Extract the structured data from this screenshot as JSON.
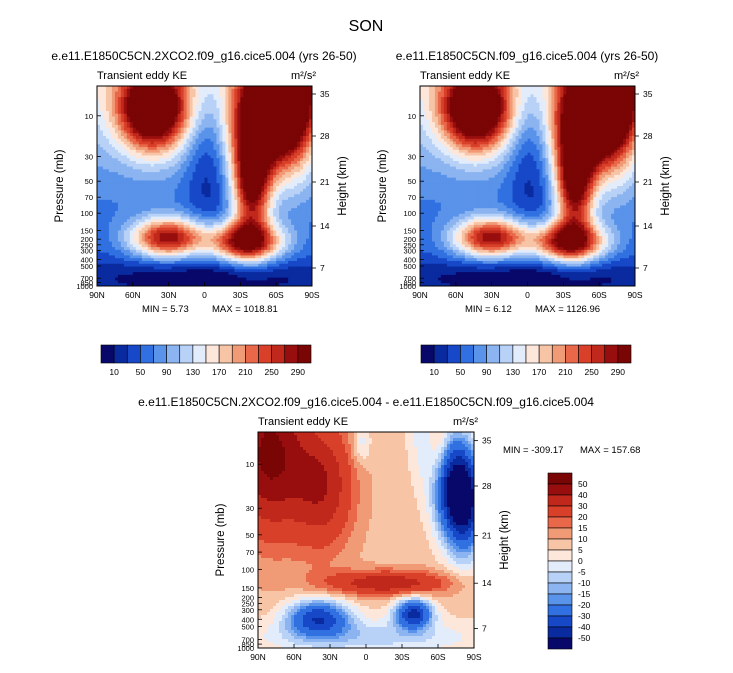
{
  "figure_title": "SON",
  "colors": {
    "seq": [
      "#08086b",
      "#0a2aa0",
      "#1648c8",
      "#3070e0",
      "#5a93ea",
      "#8bb4f0",
      "#b8d1f6",
      "#e2ecfb",
      "#fde6da",
      "#f7c4a6",
      "#f19a76",
      "#e9684a",
      "#d8402a",
      "#c0281b",
      "#980e0e",
      "#7a0505"
    ],
    "div": [
      "#08086b",
      "#0a2aa0",
      "#1648c8",
      "#3070e0",
      "#5a93ea",
      "#8bb4f0",
      "#b8d1f6",
      "#e2ecfb",
      "#fde6da",
      "#f7c4a6",
      "#f19a76",
      "#e9684a",
      "#d8402a",
      "#c0281b",
      "#980e0e",
      "#7a0505"
    ]
  },
  "chart_data": [
    {
      "type": "heatmap",
      "title": "e.e11.E1850C5CN.2XCO2.f09_g16.cice5.004 (yrs 26-50)",
      "left_label": "Transient eddy KE",
      "right_label": "m²/s²",
      "ylabel": "Pressure (mb)",
      "ylabel_right": "Height (km)",
      "x_ticks": [
        "90N",
        "60N",
        "30N",
        "0",
        "30S",
        "60S",
        "90S"
      ],
      "y_ticks": [
        "10",
        "30",
        "50",
        "70",
        "100",
        "150",
        "200",
        "250",
        "300",
        "400",
        "500",
        "700",
        "850",
        "1000"
      ],
      "height_ticks": [
        "35",
        "28",
        "21",
        "14",
        "7"
      ],
      "min_text": "MIN =   5.73",
      "max_text": "MAX = 1018.81",
      "min": 5.73,
      "max": 1018.81,
      "levels": [
        10,
        30,
        50,
        70,
        90,
        110,
        130,
        150,
        170,
        190,
        210,
        230,
        250,
        270,
        290
      ],
      "colorbar_labels": [
        "10",
        "50",
        "90",
        "130",
        "170",
        "210",
        "250",
        "290"
      ]
    },
    {
      "type": "heatmap",
      "title": "e.e11.E1850C5CN.f09_g16.cice5.004 (yrs 26-50)",
      "left_label": "Transient eddy KE",
      "right_label": "m²/s²",
      "ylabel": "Pressure (mb)",
      "ylabel_right": "Height (km)",
      "x_ticks": [
        "90N",
        "60N",
        "30N",
        "0",
        "30S",
        "60S",
        "90S"
      ],
      "y_ticks": [
        "10",
        "30",
        "50",
        "70",
        "100",
        "150",
        "200",
        "250",
        "300",
        "400",
        "500",
        "700",
        "850",
        "1000"
      ],
      "height_ticks": [
        "35",
        "28",
        "21",
        "14",
        "7"
      ],
      "min_text": "MIN =   6.12",
      "max_text": "MAX = 1126.96",
      "min": 6.12,
      "max": 1126.96,
      "levels": [
        10,
        30,
        50,
        70,
        90,
        110,
        130,
        150,
        170,
        190,
        210,
        230,
        250,
        270,
        290
      ],
      "colorbar_labels": [
        "10",
        "50",
        "90",
        "130",
        "170",
        "210",
        "250",
        "290"
      ]
    },
    {
      "type": "heatmap",
      "title": "e.e11.E1850C5CN.2XCO2.f09_g16.cice5.004 - e.e11.E1850C5CN.f09_g16.cice5.004",
      "left_label": "Transient eddy KE",
      "right_label": "m²/s²",
      "ylabel": "Pressure (mb)",
      "ylabel_right": "Height (km)",
      "x_ticks": [
        "90N",
        "60N",
        "30N",
        "0",
        "30S",
        "60S",
        "90S"
      ],
      "y_ticks": [
        "10",
        "30",
        "50",
        "70",
        "100",
        "150",
        "200",
        "250",
        "300",
        "400",
        "500",
        "700",
        "850",
        "1000"
      ],
      "height_ticks": [
        "35",
        "28",
        "21",
        "14",
        "7"
      ],
      "min_text": "MIN = -309.17",
      "max_text": "MAX = 157.68",
      "min": -309.17,
      "max": 157.68,
      "levels": [
        -50,
        -40,
        -30,
        -20,
        -15,
        -10,
        -5,
        0,
        5,
        10,
        15,
        20,
        30,
        40,
        50
      ],
      "colorbar_labels": [
        "50",
        "40",
        "30",
        "20",
        "15",
        "10",
        "5",
        "0",
        "-5",
        "-10",
        "-15",
        "-20",
        "-30",
        "-40",
        "-50"
      ]
    }
  ]
}
